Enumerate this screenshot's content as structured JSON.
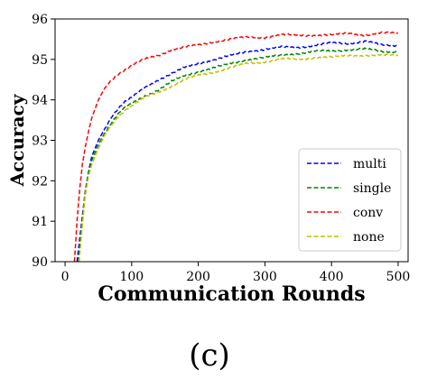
{
  "chart_data": {
    "type": "line",
    "title": "",
    "xlabel": "Communication Rounds",
    "ylabel": "Accuracy",
    "xlim": [
      -15,
      515
    ],
    "ylim": [
      90,
      96
    ],
    "xticks": [
      0,
      100,
      200,
      300,
      400,
      500
    ],
    "yticks": [
      90,
      91,
      92,
      93,
      94,
      95,
      96
    ],
    "grid": false,
    "legend_position": "lower-right",
    "caption": "(c)",
    "series": [
      {
        "name": "multi",
        "color": "#0000ff",
        "x": [
          18,
          25,
          30,
          35,
          40,
          50,
          60,
          70,
          80,
          90,
          100,
          120,
          140,
          160,
          180,
          200,
          225,
          250,
          275,
          300,
          325,
          350,
          375,
          400,
          425,
          450,
          475,
          500
        ],
        "y": [
          90.0,
          91.0,
          91.7,
          92.2,
          92.6,
          93.0,
          93.3,
          93.6,
          93.8,
          93.95,
          94.05,
          94.3,
          94.5,
          94.65,
          94.8,
          94.9,
          95.0,
          95.1,
          95.2,
          95.25,
          95.3,
          95.3,
          95.35,
          95.4,
          95.4,
          95.45,
          95.35,
          95.35
        ]
      },
      {
        "name": "single",
        "color": "#008000",
        "x": [
          20,
          25,
          30,
          35,
          40,
          50,
          60,
          70,
          80,
          90,
          100,
          120,
          140,
          160,
          180,
          200,
          225,
          250,
          275,
          300,
          325,
          350,
          375,
          400,
          425,
          450,
          475,
          500
        ],
        "y": [
          90.0,
          90.9,
          91.7,
          92.2,
          92.5,
          92.9,
          93.2,
          93.45,
          93.65,
          93.8,
          93.9,
          94.1,
          94.25,
          94.45,
          94.6,
          94.7,
          94.8,
          94.9,
          95.0,
          95.05,
          95.1,
          95.15,
          95.2,
          95.2,
          95.25,
          95.25,
          95.2,
          95.2
        ]
      },
      {
        "name": "conv",
        "color": "#ff0000",
        "x": [
          14,
          18,
          22,
          26,
          30,
          35,
          40,
          50,
          60,
          70,
          80,
          90,
          100,
          120,
          140,
          160,
          180,
          200,
          225,
          250,
          275,
          300,
          325,
          350,
          375,
          400,
          425,
          450,
          475,
          500
        ],
        "y": [
          90.0,
          91.0,
          91.8,
          92.4,
          92.8,
          93.2,
          93.55,
          94.0,
          94.3,
          94.5,
          94.65,
          94.75,
          94.85,
          95.0,
          95.1,
          95.25,
          95.3,
          95.35,
          95.45,
          95.5,
          95.55,
          95.55,
          95.6,
          95.6,
          95.6,
          95.6,
          95.65,
          95.6,
          95.65,
          95.65
        ]
      },
      {
        "name": "none",
        "color": "#bfbf00",
        "x": [
          21,
          26,
          30,
          35,
          40,
          50,
          60,
          70,
          80,
          90,
          100,
          120,
          140,
          160,
          180,
          200,
          225,
          250,
          275,
          300,
          325,
          350,
          375,
          400,
          425,
          450,
          475,
          500
        ],
        "y": [
          90.0,
          90.9,
          91.6,
          92.1,
          92.4,
          92.8,
          93.15,
          93.4,
          93.6,
          93.75,
          93.85,
          94.05,
          94.2,
          94.35,
          94.5,
          94.6,
          94.7,
          94.8,
          94.9,
          94.95,
          95.0,
          95.0,
          95.05,
          95.05,
          95.1,
          95.1,
          95.1,
          95.1
        ]
      }
    ]
  }
}
